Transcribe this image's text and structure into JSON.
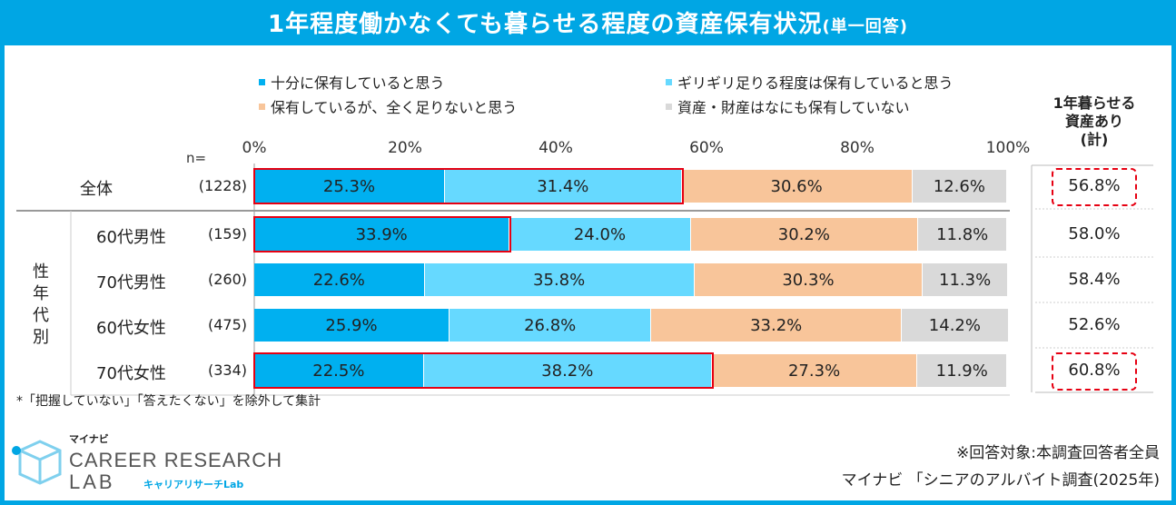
{
  "title_main": "1年程度働かなくても暮らせる程度の資産保有状況",
  "title_sub": "(単一回答)",
  "chart_data": {
    "type": "bar",
    "orientation": "horizontal",
    "stacked": true,
    "xlim": [
      0,
      100
    ],
    "xticks": [
      "0%",
      "20%",
      "40%",
      "60%",
      "80%",
      "100%"
    ],
    "n_label": "n=",
    "series": [
      {
        "name": "十分に保有していると思う",
        "color": "#00b0f0"
      },
      {
        "name": "ギリギリ足りる程度は保有していると思う",
        "color": "#66d9ff"
      },
      {
        "name": "保有しているが、全く足りないと思う",
        "color": "#f8c59a"
      },
      {
        "name": "資産・財産はなにも保有していない",
        "color": "#d9d9d9"
      }
    ],
    "rows": [
      {
        "label": "全体",
        "n": "(1228)",
        "values": [
          25.3,
          31.4,
          30.6,
          12.6
        ],
        "labels": [
          "25.3%",
          "31.4%",
          "30.6%",
          "12.6%"
        ],
        "total": "56.8%",
        "highlight_segments": 2,
        "total_highlight": true
      },
      {
        "label": "60代男性",
        "n": "(159)",
        "values": [
          33.9,
          24.0,
          30.2,
          11.8
        ],
        "labels": [
          "33.9%",
          "24.0%",
          "30.2%",
          "11.8%"
        ],
        "total": "58.0%",
        "highlight_segments": 1,
        "total_highlight": false
      },
      {
        "label": "70代男性",
        "n": "(260)",
        "values": [
          22.6,
          35.8,
          30.3,
          11.3
        ],
        "labels": [
          "22.6%",
          "35.8%",
          "30.3%",
          "11.3%"
        ],
        "total": "58.4%",
        "highlight_segments": 0,
        "total_highlight": false
      },
      {
        "label": "60代女性",
        "n": "(475)",
        "values": [
          25.9,
          26.8,
          33.2,
          14.2
        ],
        "labels": [
          "25.9%",
          "26.8%",
          "33.2%",
          "14.2%"
        ],
        "total": "52.6%",
        "highlight_segments": 0,
        "total_highlight": false
      },
      {
        "label": "70代女性",
        "n": "(334)",
        "values": [
          22.5,
          38.2,
          27.3,
          11.9
        ],
        "labels": [
          "22.5%",
          "38.2%",
          "27.3%",
          "11.9%"
        ],
        "total": "60.8%",
        "highlight_segments": 2,
        "total_highlight": true
      }
    ],
    "total_header": [
      "1年暮らせる",
      "資産あり",
      "(計)"
    ],
    "group_label": [
      "性",
      "年",
      "代",
      "別"
    ]
  },
  "footnote": "*「把握していない」「答えたくない」を除外して集計",
  "source_target": "※回答対象:本調査回答者全員",
  "source_survey": "マイナビ 「シニアのアルバイト調査(2025年)",
  "logo": {
    "brand": "マイナビ",
    "line1": "CAREER RESEARCH",
    "line2": "LAB",
    "line2_sub": "キャリアリサーチLab"
  }
}
